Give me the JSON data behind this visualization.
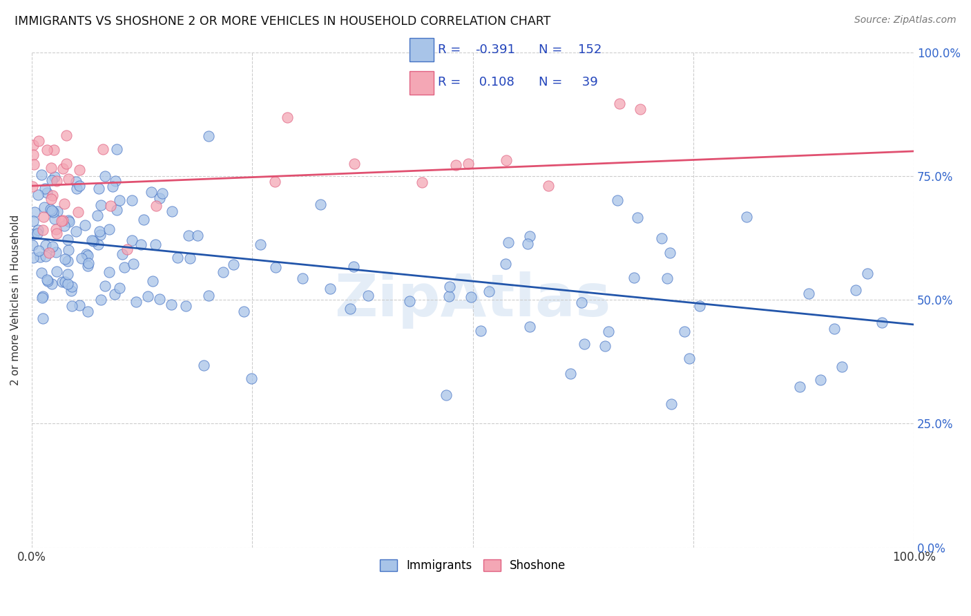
{
  "title": "IMMIGRANTS VS SHOSHONE 2 OR MORE VEHICLES IN HOUSEHOLD CORRELATION CHART",
  "source": "Source: ZipAtlas.com",
  "ylabel": "2 or more Vehicles in Household",
  "immigrants_R": "-0.391",
  "immigrants_N": "152",
  "shoshone_R": "0.108",
  "shoshone_N": "39",
  "blue_scatter_color": "#A8C4E8",
  "blue_edge_color": "#4472C4",
  "pink_scatter_color": "#F4A7B5",
  "pink_edge_color": "#E06080",
  "blue_line_color": "#2255AA",
  "pink_line_color": "#E05070",
  "legend_text_color": "#2244BB",
  "right_tick_color": "#3366CC",
  "background_color": "#FFFFFF",
  "grid_color": "#CCCCCC",
  "watermark_color": "#C5D8EE",
  "title_color": "#111111",
  "source_color": "#777777",
  "ylabel_color": "#333333"
}
